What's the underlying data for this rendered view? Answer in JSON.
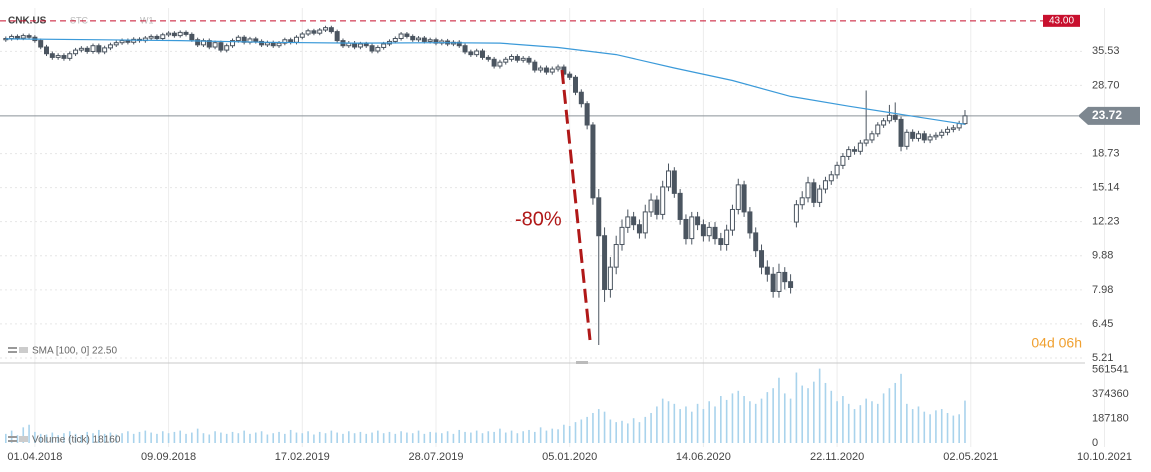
{
  "chart_data": {
    "type": "candlestick",
    "title": "CNK.US",
    "subtitles": [
      "STC",
      "W1"
    ],
    "color": "#4b5560",
    "log_scale": true,
    "grid": true,
    "xlim": [
      -6,
      192
    ],
    "xticks": [
      {
        "value": 0,
        "label": "01.04.2018"
      },
      {
        "value": 23,
        "label": "09.09.2018"
      },
      {
        "value": 46,
        "label": "17.02.2019"
      },
      {
        "value": 69,
        "label": "28.07.2019"
      },
      {
        "value": 92,
        "label": "05.01.2020"
      },
      {
        "value": 115,
        "label": "14.06.2020"
      },
      {
        "value": 138,
        "label": "22.11.2020"
      },
      {
        "value": 161,
        "label": "02.05.2021"
      },
      {
        "value": 184,
        "label": "10.10.2021"
      }
    ],
    "ylim": [
      5.08,
      46.6
    ],
    "yticks": [
      5.21,
      6.45,
      7.98,
      9.88,
      12.23,
      15.14,
      18.73,
      {
        "value": 28.7,
        "label": "28.70"
      },
      35.53
    ],
    "hline": {
      "value": 43,
      "label": "43.00",
      "color": "#c8102e"
    },
    "last_price": 23.72,
    "annotation": "-80%",
    "countdown": "04d 06h",
    "x": [
      -5,
      -4,
      -3,
      -2,
      -1,
      0,
      1,
      2,
      3,
      4,
      5,
      6,
      7,
      8,
      9,
      10,
      11,
      12,
      13,
      14,
      15,
      16,
      17,
      18,
      19,
      20,
      21,
      22,
      23,
      24,
      25,
      26,
      27,
      28,
      29,
      30,
      31,
      32,
      33,
      34,
      35,
      36,
      37,
      38,
      39,
      40,
      41,
      42,
      43,
      44,
      45,
      46,
      47,
      48,
      49,
      50,
      51,
      52,
      53,
      54,
      55,
      56,
      57,
      58,
      59,
      60,
      61,
      62,
      63,
      64,
      65,
      66,
      67,
      68,
      69,
      70,
      71,
      72,
      73,
      74,
      75,
      76,
      77,
      78,
      79,
      80,
      81,
      82,
      83,
      84,
      85,
      86,
      87,
      88,
      89,
      90,
      91,
      92,
      93,
      94,
      95,
      96,
      97,
      98,
      99,
      100,
      101,
      102,
      103,
      104,
      105,
      106,
      107,
      108,
      109,
      110,
      111,
      112,
      113,
      114,
      115,
      116,
      117,
      118,
      119,
      120,
      121,
      122,
      123,
      124,
      125,
      126,
      127,
      128,
      129,
      130,
      131,
      132,
      133,
      134,
      135,
      136,
      137,
      138,
      139,
      140,
      141,
      142,
      143,
      144,
      145,
      146,
      147,
      148,
      149,
      150,
      151,
      152,
      153,
      154,
      155,
      156,
      157,
      158,
      159,
      160
    ],
    "open": [
      38.2,
      38.5,
      39.0,
      38.6,
      39.2,
      38.8,
      38.0,
      36.5,
      35.0,
      34.2,
      34.6,
      34.0,
      35.0,
      35.8,
      36.2,
      35.5,
      36.8,
      35.4,
      36.3,
      37.0,
      37.5,
      38.0,
      37.6,
      38.3,
      38.0,
      38.6,
      39.0,
      38.5,
      39.4,
      39.8,
      39.2,
      40.0,
      39.5,
      38.2,
      37.0,
      38.0,
      36.5,
      37.5,
      35.8,
      36.8,
      38.0,
      38.8,
      37.6,
      38.4,
      37.8,
      37.0,
      37.5,
      36.8,
      37.4,
      38.2,
      37.6,
      38.8,
      39.6,
      40.4,
      39.8,
      40.6,
      41.2,
      40.2,
      38.0,
      36.8,
      37.4,
      36.5,
      37.2,
      36.8,
      35.6,
      36.4,
      37.2,
      37.8,
      38.5,
      39.6,
      39.0,
      38.2,
      38.6,
      37.8,
      38.2,
      37.4,
      37.9,
      37.2,
      37.6,
      36.8,
      35.4,
      34.8,
      35.6,
      34.2,
      33.8,
      32.4,
      33.2,
      33.8,
      34.4,
      33.6,
      34.0,
      33.2,
      31.6,
      32.0,
      31.2,
      31.8,
      32.2,
      30.8,
      30.2,
      27.5,
      25.6,
      22.4,
      14.2,
      11.2,
      8.0,
      9.2,
      10.6,
      11.8,
      12.6,
      12.0,
      11.4,
      13.0,
      14.0,
      12.8,
      15.2,
      16.8,
      14.6,
      12.4,
      11.0,
      12.6,
      12.0,
      11.2,
      11.8,
      11.0,
      10.6,
      11.6,
      13.2,
      15.4,
      13.0,
      11.4,
      10.2,
      9.2,
      8.8,
      7.9,
      8.9,
      8.4,
      12.2,
      13.6,
      14.2,
      15.6,
      13.8,
      15.0,
      15.8,
      16.4,
      17.4,
      18.4,
      19.2,
      19.0,
      20.0,
      20.4,
      21.2,
      22.4,
      23.0,
      23.8,
      23.2,
      19.6,
      21.4,
      20.6,
      21.2,
      20.4,
      20.8,
      21.0,
      21.4,
      21.8,
      22.0,
      22.6
    ],
    "high": [
      39.0,
      39.5,
      39.5,
      39.7,
      39.7,
      39.3,
      38.5,
      37.0,
      35.5,
      35.1,
      35.1,
      35.5,
      36.3,
      36.7,
      36.7,
      37.3,
      37.3,
      36.8,
      37.5,
      38.0,
      38.5,
      38.5,
      38.8,
      38.8,
      39.1,
      39.5,
      39.5,
      39.9,
      40.3,
      40.3,
      40.5,
      40.5,
      40.0,
      38.7,
      38.5,
      38.5,
      38.0,
      38.0,
      37.3,
      38.5,
      39.3,
      39.3,
      38.9,
      38.9,
      38.3,
      38.0,
      38.0,
      37.9,
      38.7,
      38.7,
      39.3,
      40.1,
      40.9,
      40.9,
      41.1,
      41.7,
      41.7,
      40.7,
      38.5,
      37.9,
      37.9,
      37.7,
      37.7,
      37.3,
      36.9,
      37.7,
      38.3,
      39.0,
      40.1,
      40.1,
      39.5,
      39.1,
      39.1,
      38.7,
      38.7,
      38.4,
      38.4,
      38.1,
      38.1,
      37.3,
      35.9,
      36.1,
      36.1,
      34.7,
      34.3,
      33.7,
      34.3,
      34.9,
      34.9,
      34.5,
      34.5,
      33.7,
      32.5,
      32.5,
      32.3,
      32.7,
      32.7,
      31.3,
      30.6,
      28.0,
      26.0,
      22.8,
      15.0,
      11.8,
      9.8,
      11.2,
      12.4,
      13.2,
      13.0,
      12.4,
      13.6,
      14.6,
      14.4,
      15.8,
      17.6,
      17.2,
      15.0,
      12.8,
      13.0,
      13.0,
      12.4,
      12.2,
      12.2,
      11.4,
      12.0,
      13.6,
      16.0,
      15.8,
      13.4,
      11.8,
      10.6,
      9.6,
      9.2,
      9.4,
      9.2,
      8.8,
      14.0,
      14.8,
      16.2,
      16.0,
      15.4,
      16.2,
      16.8,
      17.8,
      18.8,
      19.6,
      19.6,
      20.4,
      27.8,
      21.6,
      22.8,
      23.4,
      25.4,
      25.8,
      23.6,
      21.8,
      21.8,
      21.6,
      21.6,
      21.2,
      21.4,
      21.8,
      22.2,
      22.4,
      23.0,
      24.6
    ],
    "low": [
      37.7,
      38.0,
      38.1,
      38.1,
      38.3,
      37.5,
      36.0,
      34.5,
      33.7,
      33.7,
      33.5,
      33.5,
      34.5,
      35.3,
      35.0,
      35.0,
      34.9,
      34.9,
      35.8,
      36.5,
      37.0,
      37.1,
      37.1,
      37.5,
      37.5,
      38.1,
      38.0,
      38.0,
      38.9,
      38.7,
      38.7,
      39.0,
      37.7,
      36.5,
      36.5,
      36.0,
      36.0,
      35.3,
      35.3,
      36.3,
      37.5,
      37.1,
      37.1,
      37.3,
      36.5,
      36.5,
      36.3,
      36.3,
      36.9,
      37.1,
      37.1,
      38.3,
      39.1,
      39.3,
      39.3,
      40.1,
      39.7,
      37.5,
      36.3,
      36.3,
      36.0,
      36.0,
      36.3,
      35.1,
      35.1,
      35.9,
      36.7,
      37.3,
      38.0,
      38.5,
      37.7,
      37.7,
      37.3,
      37.3,
      36.9,
      36.9,
      36.7,
      36.7,
      36.3,
      34.9,
      34.3,
      34.3,
      33.7,
      33.3,
      31.9,
      31.9,
      32.7,
      33.3,
      33.1,
      33.1,
      32.7,
      31.1,
      31.1,
      30.7,
      30.7,
      31.3,
      30.3,
      29.7,
      27.0,
      25.0,
      21.8,
      13.6,
      5.65,
      7.4,
      7.6,
      8.8,
      10.2,
      11.4,
      11.6,
      11.0,
      11.0,
      12.6,
      12.4,
      12.4,
      14.8,
      14.2,
      12.0,
      10.6,
      10.6,
      11.6,
      10.8,
      10.8,
      10.6,
      10.2,
      10.2,
      11.2,
      12.8,
      12.6,
      11.0,
      9.8,
      8.8,
      8.4,
      7.6,
      7.6,
      8.0,
      7.8,
      11.8,
      13.2,
      13.8,
      13.4,
      13.4,
      14.6,
      15.4,
      16.0,
      17.0,
      18.0,
      18.6,
      18.6,
      19.6,
      20.0,
      20.8,
      22.0,
      22.6,
      22.8,
      19.0,
      19.2,
      20.2,
      20.2,
      20.0,
      20.0,
      20.4,
      20.6,
      21.0,
      21.4,
      21.6,
      22.4
    ],
    "close": [
      38.5,
      39.0,
      38.6,
      39.2,
      38.8,
      38.0,
      36.5,
      35.0,
      34.2,
      34.6,
      34.0,
      35.0,
      35.8,
      36.2,
      35.5,
      36.8,
      35.4,
      36.3,
      37.0,
      37.5,
      38.0,
      37.6,
      38.3,
      38.0,
      38.6,
      39.0,
      38.5,
      39.4,
      39.8,
      39.2,
      40.0,
      39.5,
      38.2,
      37.0,
      38.0,
      36.5,
      37.5,
      35.8,
      36.8,
      38.0,
      38.8,
      37.6,
      38.4,
      37.8,
      37.0,
      37.5,
      36.8,
      37.4,
      38.2,
      37.6,
      38.8,
      39.6,
      40.4,
      39.8,
      40.6,
      41.2,
      40.2,
      38.0,
      36.8,
      37.4,
      36.5,
      37.2,
      36.8,
      35.6,
      36.4,
      37.2,
      37.8,
      38.5,
      39.6,
      39.0,
      38.2,
      38.6,
      37.8,
      38.2,
      37.4,
      37.9,
      37.2,
      37.6,
      36.8,
      35.4,
      34.8,
      35.6,
      34.2,
      33.8,
      32.4,
      33.2,
      33.8,
      34.4,
      33.6,
      34.0,
      33.2,
      31.6,
      32.0,
      31.2,
      31.8,
      32.2,
      30.8,
      30.2,
      27.5,
      25.6,
      22.4,
      14.2,
      11.2,
      8.0,
      9.2,
      10.6,
      11.8,
      12.6,
      12.0,
      11.4,
      13.0,
      14.0,
      12.8,
      15.2,
      16.8,
      14.6,
      12.4,
      11.0,
      12.6,
      12.0,
      11.2,
      11.8,
      11.0,
      10.6,
      11.6,
      13.2,
      15.4,
      13.0,
      11.4,
      10.2,
      9.2,
      8.8,
      7.9,
      8.9,
      8.4,
      8.1,
      13.6,
      14.2,
      15.6,
      13.8,
      15.0,
      15.8,
      16.4,
      17.4,
      18.4,
      19.2,
      19.0,
      20.0,
      20.4,
      21.2,
      22.4,
      23.0,
      23.8,
      23.2,
      19.6,
      21.4,
      20.6,
      21.2,
      20.4,
      20.8,
      21.0,
      21.4,
      21.8,
      22.0,
      22.6,
      23.72
    ],
    "sma": {
      "name": "SMA [100, 0] 22.50",
      "color": "#3b9ad9",
      "x": [
        -5,
        10,
        25,
        40,
        55,
        70,
        80,
        90,
        100,
        110,
        120,
        130,
        140,
        150,
        160
      ],
      "values": [
        38.4,
        38.2,
        38.0,
        37.6,
        37.4,
        37.5,
        37.4,
        36.4,
        34.8,
        32.0,
        29.6,
        26.8,
        25.2,
        23.8,
        22.5
      ]
    },
    "volume": {
      "name": "Volume (tick) 18160",
      "color": "#a9d3ec",
      "ylim": [
        0,
        590000
      ],
      "yticks": [
        0,
        187180,
        374360,
        561541
      ],
      "values": [
        70000,
        95000,
        60000,
        120000,
        140000,
        85000,
        70000,
        65000,
        80000,
        60000,
        75000,
        90000,
        70000,
        60000,
        85000,
        75000,
        100000,
        70000,
        80000,
        65000,
        75000,
        90000,
        70000,
        85000,
        95000,
        80000,
        70000,
        90000,
        75000,
        85000,
        95000,
        70000,
        80000,
        110000,
        75000,
        65000,
        90000,
        80000,
        70000,
        85000,
        75000,
        95000,
        70000,
        80000,
        90000,
        65000,
        75000,
        85000,
        70000,
        100000,
        80000,
        75000,
        90000,
        65000,
        85000,
        75000,
        95000,
        80000,
        70000,
        90000,
        75000,
        85000,
        70000,
        80000,
        95000,
        75000,
        85000,
        70000,
        90000,
        80000,
        75000,
        95000,
        70000,
        85000,
        80000,
        75000,
        90000,
        70000,
        100000,
        85000,
        80000,
        95000,
        75000,
        90000,
        85000,
        110000,
        80000,
        95000,
        75000,
        90000,
        100000,
        85000,
        120000,
        95000,
        110000,
        105000,
        140000,
        130000,
        160000,
        180000,
        200000,
        230000,
        260000,
        240000,
        180000,
        160000,
        170000,
        150000,
        190000,
        160000,
        200000,
        230000,
        280000,
        340000,
        320000,
        300000,
        260000,
        280000,
        240000,
        300000,
        260000,
        320000,
        280000,
        360000,
        330000,
        380000,
        400000,
        360000,
        320000,
        300000,
        340000,
        390000,
        420000,
        500000,
        380000,
        340000,
        540000,
        440000,
        420000,
        470000,
        570000,
        460000,
        400000,
        320000,
        360000,
        300000,
        260000,
        290000,
        340000,
        320000,
        300000,
        380000,
        420000,
        460000,
        530000,
        300000,
        260000,
        280000,
        240000,
        220000,
        250000,
        260000,
        230000,
        210000,
        220000,
        325000
      ]
    }
  }
}
